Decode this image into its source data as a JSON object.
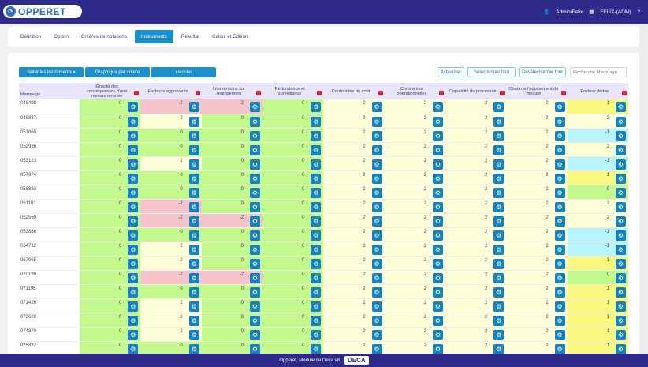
{
  "header": {
    "logo": "OPPERET",
    "user": "Admin/Felix",
    "account": "FELIX-(ADM)"
  },
  "tabs": [
    "Définition",
    "Option",
    "Critères de notations",
    "Instruments",
    "Resultat",
    "Calcul et Edition"
  ],
  "active_tab": 3,
  "toolbar": {
    "noter": "Noter les instruments ▾",
    "graphique": "Graphique par critere",
    "calculer": "calculer",
    "actualiser": "Actualiser",
    "select_all": "Sélectionner tout",
    "deselect_all": "Désélectionner tout",
    "search_placeholder": "Recherche Marquage"
  },
  "columns": [
    "Marquage",
    "Gravité des conséquences d'une mesure erronée",
    "Facteurs aggravants",
    "Interventions sur l'équipement",
    "Redondance et surveillance",
    "Contraintes de coût",
    "Contraintes opérationnelles",
    "Capabilité du processus",
    "Choix de l'équipement de mesure",
    "Facteur dérive"
  ],
  "colors": {
    "-2": "#f5c5cb",
    "-1": "#b8f4fb",
    "0": "#c3f88c",
    "1": "#f8f87f",
    "2": "#fefed9",
    "accent": "#1a8fc9",
    "header": "#2e2a8a"
  },
  "rows": [
    [
      "048498",
      0,
      -2,
      -2,
      0,
      2,
      2,
      2,
      2,
      1
    ],
    [
      "049837",
      0,
      2,
      0,
      0,
      2,
      2,
      2,
      2,
      2
    ],
    [
      "051860",
      0,
      0,
      0,
      0,
      2,
      2,
      2,
      2,
      -1
    ],
    [
      "052936",
      0,
      0,
      0,
      0,
      2,
      2,
      2,
      2,
      2
    ],
    [
      "053123",
      0,
      2,
      0,
      0,
      2,
      2,
      2,
      2,
      -1
    ],
    [
      "057974",
      0,
      0,
      0,
      0,
      2,
      2,
      2,
      2,
      1
    ],
    [
      "058883",
      0,
      0,
      0,
      0,
      2,
      2,
      2,
      2,
      0
    ],
    [
      "061181",
      0,
      -2,
      0,
      0,
      2,
      2,
      2,
      2,
      2
    ],
    [
      "062550",
      0,
      -2,
      -2,
      0,
      2,
      2,
      2,
      2,
      2
    ],
    [
      "063886",
      0,
      0,
      0,
      0,
      2,
      2,
      2,
      2,
      -1
    ],
    [
      "064712",
      0,
      2,
      0,
      0,
      2,
      2,
      2,
      2,
      -1
    ],
    [
      "067965",
      0,
      2,
      0,
      0,
      2,
      2,
      2,
      2,
      1
    ],
    [
      "070199",
      0,
      -2,
      -2,
      0,
      2,
      2,
      2,
      2,
      0
    ],
    [
      "071196",
      0,
      0,
      0,
      0,
      2,
      2,
      2,
      2,
      1
    ],
    [
      "071426",
      0,
      2,
      0,
      0,
      2,
      2,
      2,
      2,
      1
    ],
    [
      "073629",
      0,
      2,
      0,
      0,
      2,
      2,
      2,
      2,
      1
    ],
    [
      "074370",
      0,
      2,
      0,
      0,
      2,
      2,
      2,
      2,
      1
    ],
    [
      "075832",
      0,
      0,
      0,
      0,
      2,
      2,
      2,
      2,
      1
    ]
  ],
  "footer": {
    "text": "Opperet, Module de Deca v8",
    "logo": "DECA"
  }
}
